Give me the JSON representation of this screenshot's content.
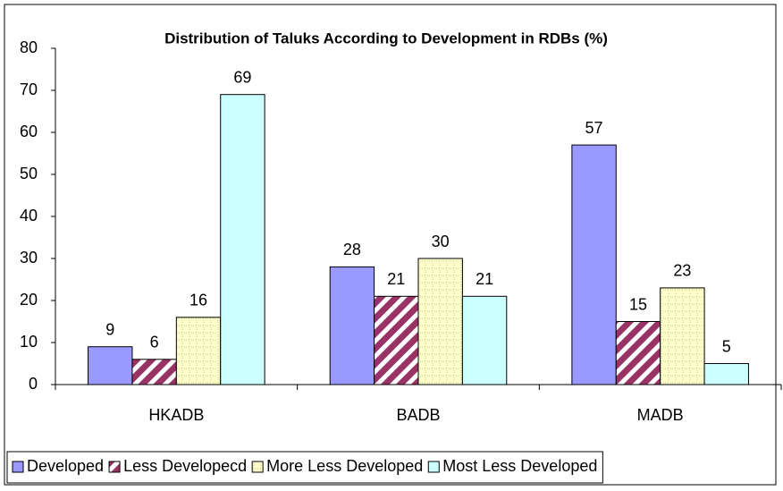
{
  "chart_data": {
    "type": "bar",
    "title": "Distribution of Taluks According to Development in RDBs (%)",
    "categories": [
      "HKADB",
      "BADB",
      "MADB"
    ],
    "series": [
      {
        "name": "Developed",
        "color": "#9999ff",
        "pattern": "solid",
        "values": [
          9,
          28,
          57
        ]
      },
      {
        "name": "Less Developecd",
        "color": "#993366",
        "pattern": "diagonal",
        "values": [
          6,
          21,
          15
        ]
      },
      {
        "name": "More Less Developed",
        "color": "#ffffcc",
        "pattern": "dots",
        "values": [
          16,
          30,
          23
        ]
      },
      {
        "name": "Most Less Developed",
        "color": "#ccffff",
        "pattern": "solid",
        "values": [
          69,
          21,
          5
        ]
      }
    ],
    "ylim": [
      0,
      80
    ],
    "yticks": [
      0,
      10,
      20,
      30,
      40,
      50,
      60,
      70,
      80
    ],
    "legend": "bottom"
  }
}
